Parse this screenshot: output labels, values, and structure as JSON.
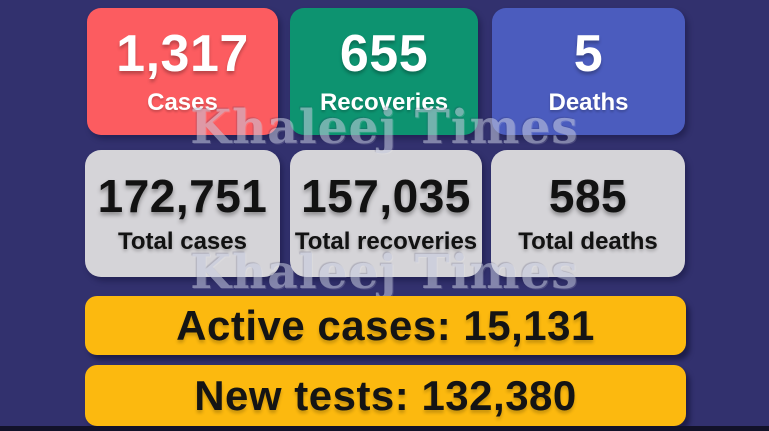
{
  "chart_data": {
    "type": "table",
    "columns": [
      "Metric",
      "Value"
    ],
    "rows": [
      [
        "Cases",
        1317
      ],
      [
        "Recoveries",
        655
      ],
      [
        "Deaths",
        5
      ],
      [
        "Total cases",
        172751
      ],
      [
        "Total recoveries",
        157035
      ],
      [
        "Total deaths",
        585
      ],
      [
        "Active cases",
        15131
      ],
      [
        "New tests",
        132380
      ]
    ]
  },
  "colors": {
    "background": "#32316e",
    "cases_card": "#fc5c60",
    "recoveries_card": "#0d9370",
    "deaths_card": "#4b5cbe",
    "totals_card": "#d5d4d8",
    "banner": "#fcb90f",
    "bottom_strip": "#121229"
  },
  "watermark": {
    "text": "Khaleej Times"
  },
  "daily_cards": [
    {
      "value": "1,317",
      "label": "Cases",
      "color": "#fc5c60"
    },
    {
      "value": "655",
      "label": "Recoveries",
      "color": "#0d9370"
    },
    {
      "value": "5",
      "label": "Deaths",
      "color": "#4b5cbe"
    }
  ],
  "total_cards": [
    {
      "value": "172,751",
      "label": "Total cases"
    },
    {
      "value": "157,035",
      "label": "Total recoveries"
    },
    {
      "value": "585",
      "label": "Total deaths"
    }
  ],
  "banners": [
    {
      "text": "Active cases: 15,131"
    },
    {
      "text": "New tests: 132,380"
    }
  ]
}
